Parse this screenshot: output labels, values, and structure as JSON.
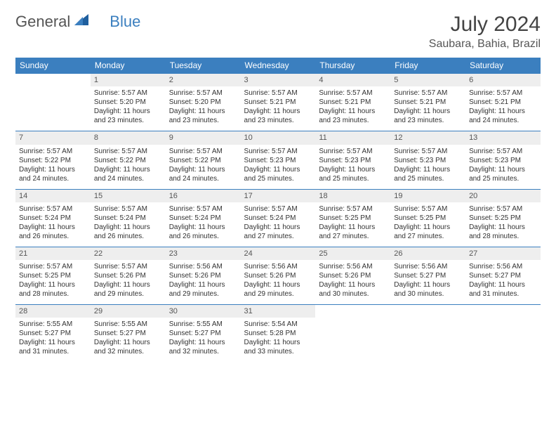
{
  "logo": {
    "text1": "General",
    "text2": "Blue"
  },
  "title": "July 2024",
  "location": "Saubara, Bahia, Brazil",
  "colors": {
    "header_bg": "#3b7fbf",
    "header_text": "#ffffff",
    "daynum_bg": "#eeeeee",
    "row_divider": "#3b7fbf",
    "body_text": "#333333"
  },
  "day_headers": [
    "Sunday",
    "Monday",
    "Tuesday",
    "Wednesday",
    "Thursday",
    "Friday",
    "Saturday"
  ],
  "weeks": [
    [
      {
        "n": "",
        "sr": "",
        "ss": "",
        "dl": ""
      },
      {
        "n": "1",
        "sr": "Sunrise: 5:57 AM",
        "ss": "Sunset: 5:20 PM",
        "dl": "Daylight: 11 hours and 23 minutes."
      },
      {
        "n": "2",
        "sr": "Sunrise: 5:57 AM",
        "ss": "Sunset: 5:20 PM",
        "dl": "Daylight: 11 hours and 23 minutes."
      },
      {
        "n": "3",
        "sr": "Sunrise: 5:57 AM",
        "ss": "Sunset: 5:21 PM",
        "dl": "Daylight: 11 hours and 23 minutes."
      },
      {
        "n": "4",
        "sr": "Sunrise: 5:57 AM",
        "ss": "Sunset: 5:21 PM",
        "dl": "Daylight: 11 hours and 23 minutes."
      },
      {
        "n": "5",
        "sr": "Sunrise: 5:57 AM",
        "ss": "Sunset: 5:21 PM",
        "dl": "Daylight: 11 hours and 23 minutes."
      },
      {
        "n": "6",
        "sr": "Sunrise: 5:57 AM",
        "ss": "Sunset: 5:21 PM",
        "dl": "Daylight: 11 hours and 24 minutes."
      }
    ],
    [
      {
        "n": "7",
        "sr": "Sunrise: 5:57 AM",
        "ss": "Sunset: 5:22 PM",
        "dl": "Daylight: 11 hours and 24 minutes."
      },
      {
        "n": "8",
        "sr": "Sunrise: 5:57 AM",
        "ss": "Sunset: 5:22 PM",
        "dl": "Daylight: 11 hours and 24 minutes."
      },
      {
        "n": "9",
        "sr": "Sunrise: 5:57 AM",
        "ss": "Sunset: 5:22 PM",
        "dl": "Daylight: 11 hours and 24 minutes."
      },
      {
        "n": "10",
        "sr": "Sunrise: 5:57 AM",
        "ss": "Sunset: 5:23 PM",
        "dl": "Daylight: 11 hours and 25 minutes."
      },
      {
        "n": "11",
        "sr": "Sunrise: 5:57 AM",
        "ss": "Sunset: 5:23 PM",
        "dl": "Daylight: 11 hours and 25 minutes."
      },
      {
        "n": "12",
        "sr": "Sunrise: 5:57 AM",
        "ss": "Sunset: 5:23 PM",
        "dl": "Daylight: 11 hours and 25 minutes."
      },
      {
        "n": "13",
        "sr": "Sunrise: 5:57 AM",
        "ss": "Sunset: 5:23 PM",
        "dl": "Daylight: 11 hours and 25 minutes."
      }
    ],
    [
      {
        "n": "14",
        "sr": "Sunrise: 5:57 AM",
        "ss": "Sunset: 5:24 PM",
        "dl": "Daylight: 11 hours and 26 minutes."
      },
      {
        "n": "15",
        "sr": "Sunrise: 5:57 AM",
        "ss": "Sunset: 5:24 PM",
        "dl": "Daylight: 11 hours and 26 minutes."
      },
      {
        "n": "16",
        "sr": "Sunrise: 5:57 AM",
        "ss": "Sunset: 5:24 PM",
        "dl": "Daylight: 11 hours and 26 minutes."
      },
      {
        "n": "17",
        "sr": "Sunrise: 5:57 AM",
        "ss": "Sunset: 5:24 PM",
        "dl": "Daylight: 11 hours and 27 minutes."
      },
      {
        "n": "18",
        "sr": "Sunrise: 5:57 AM",
        "ss": "Sunset: 5:25 PM",
        "dl": "Daylight: 11 hours and 27 minutes."
      },
      {
        "n": "19",
        "sr": "Sunrise: 5:57 AM",
        "ss": "Sunset: 5:25 PM",
        "dl": "Daylight: 11 hours and 27 minutes."
      },
      {
        "n": "20",
        "sr": "Sunrise: 5:57 AM",
        "ss": "Sunset: 5:25 PM",
        "dl": "Daylight: 11 hours and 28 minutes."
      }
    ],
    [
      {
        "n": "21",
        "sr": "Sunrise: 5:57 AM",
        "ss": "Sunset: 5:25 PM",
        "dl": "Daylight: 11 hours and 28 minutes."
      },
      {
        "n": "22",
        "sr": "Sunrise: 5:57 AM",
        "ss": "Sunset: 5:26 PM",
        "dl": "Daylight: 11 hours and 29 minutes."
      },
      {
        "n": "23",
        "sr": "Sunrise: 5:56 AM",
        "ss": "Sunset: 5:26 PM",
        "dl": "Daylight: 11 hours and 29 minutes."
      },
      {
        "n": "24",
        "sr": "Sunrise: 5:56 AM",
        "ss": "Sunset: 5:26 PM",
        "dl": "Daylight: 11 hours and 29 minutes."
      },
      {
        "n": "25",
        "sr": "Sunrise: 5:56 AM",
        "ss": "Sunset: 5:26 PM",
        "dl": "Daylight: 11 hours and 30 minutes."
      },
      {
        "n": "26",
        "sr": "Sunrise: 5:56 AM",
        "ss": "Sunset: 5:27 PM",
        "dl": "Daylight: 11 hours and 30 minutes."
      },
      {
        "n": "27",
        "sr": "Sunrise: 5:56 AM",
        "ss": "Sunset: 5:27 PM",
        "dl": "Daylight: 11 hours and 31 minutes."
      }
    ],
    [
      {
        "n": "28",
        "sr": "Sunrise: 5:55 AM",
        "ss": "Sunset: 5:27 PM",
        "dl": "Daylight: 11 hours and 31 minutes."
      },
      {
        "n": "29",
        "sr": "Sunrise: 5:55 AM",
        "ss": "Sunset: 5:27 PM",
        "dl": "Daylight: 11 hours and 32 minutes."
      },
      {
        "n": "30",
        "sr": "Sunrise: 5:55 AM",
        "ss": "Sunset: 5:27 PM",
        "dl": "Daylight: 11 hours and 32 minutes."
      },
      {
        "n": "31",
        "sr": "Sunrise: 5:54 AM",
        "ss": "Sunset: 5:28 PM",
        "dl": "Daylight: 11 hours and 33 minutes."
      },
      {
        "n": "",
        "sr": "",
        "ss": "",
        "dl": ""
      },
      {
        "n": "",
        "sr": "",
        "ss": "",
        "dl": ""
      },
      {
        "n": "",
        "sr": "",
        "ss": "",
        "dl": ""
      }
    ]
  ]
}
